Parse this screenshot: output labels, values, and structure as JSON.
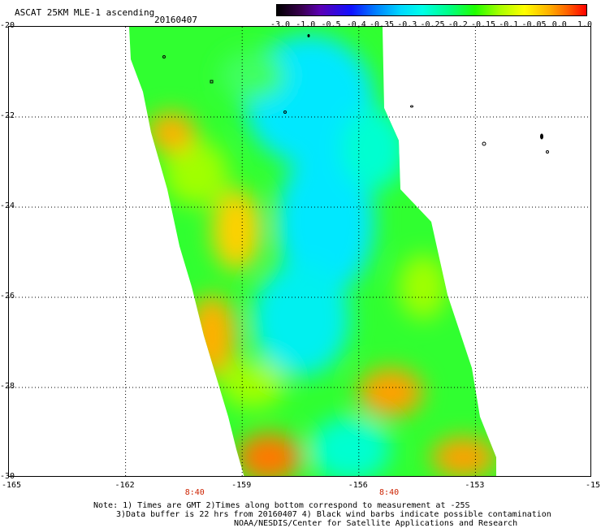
{
  "title": "ASCAT 25KM MLE-1 ascending",
  "date": "20160407",
  "colorbar": {
    "ticks": [
      "-3.0",
      "-1.0",
      "-0.5",
      "-0.4",
      "-0.35",
      "-0.3",
      "-0.25",
      "-0.2",
      "-0.15",
      "-0.1",
      "-0.05",
      "0.0",
      "1.0"
    ]
  },
  "axes": {
    "lat_ticks": [
      "-20",
      "-22",
      "-24",
      "-26",
      "-28",
      "-30"
    ],
    "lon_ticks": [
      "-165",
      "-162",
      "-159",
      "-156",
      "-153",
      "-15"
    ],
    "lon_range": [
      -165,
      -150
    ],
    "lat_range": [
      -20,
      -30
    ],
    "grid": "dotted"
  },
  "time_labels": [
    "8:40",
    "8:40"
  ],
  "notes": [
    "Note: 1) Times are GMT 2)Times along bottom correspond to measurement at -25S",
    "3)Data buffer is 22 hrs from 20160407 4) Black wind barbs indicate possible contamination",
    "NOAA/NESDIS/Center for Satellite Applications and Research"
  ],
  "swath_colors": {
    "light_blue": "#00e8ff",
    "cyan": "#00ffd0",
    "green": "#00ff40",
    "yellow_green": "#a0ff00",
    "yellow": "#f8f800",
    "orange": "#ffa000",
    "dark_orange": "#ff7800"
  }
}
